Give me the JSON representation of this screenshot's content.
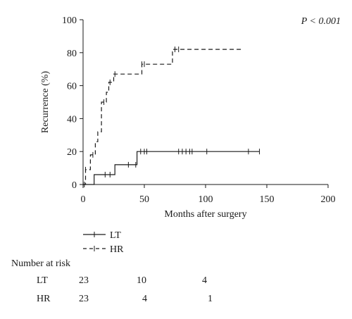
{
  "chart_data": {
    "type": "line",
    "subtype": "kaplan-meier-step",
    "xlabel": "Months after surgery",
    "ylabel": "Recurrence (%)",
    "xlim": [
      0,
      200
    ],
    "ylim": [
      0,
      100
    ],
    "xticks": [
      "0",
      "50",
      "100",
      "150",
      "200"
    ],
    "yticks": [
      "0",
      "20",
      "40",
      "60",
      "80",
      "100"
    ],
    "annotation": "P < 0.001",
    "grid": false,
    "legend_placement": "below-left",
    "series": [
      {
        "name": "LT",
        "style": "solid",
        "color": "#1a1a1a",
        "steps": [
          [
            0,
            0
          ],
          [
            9,
            0
          ],
          [
            9,
            6
          ],
          [
            26,
            6
          ],
          [
            26,
            12
          ],
          [
            44,
            12
          ],
          [
            44,
            20
          ],
          [
            144,
            20
          ]
        ],
        "censored": [
          18,
          22,
          37,
          43,
          47,
          50,
          52,
          78,
          81,
          84,
          87,
          89,
          101,
          135,
          144
        ]
      },
      {
        "name": "HR",
        "style": "dashed",
        "color": "#1a1a1a",
        "steps": [
          [
            0,
            0
          ],
          [
            2,
            0
          ],
          [
            2,
            9
          ],
          [
            6,
            9
          ],
          [
            6,
            18
          ],
          [
            10,
            18
          ],
          [
            10,
            26
          ],
          [
            12,
            26
          ],
          [
            12,
            32
          ],
          [
            15,
            32
          ],
          [
            15,
            50
          ],
          [
            19,
            50
          ],
          [
            19,
            56
          ],
          [
            21,
            56
          ],
          [
            21,
            62
          ],
          [
            25,
            62
          ],
          [
            25,
            67
          ],
          [
            48,
            67
          ],
          [
            48,
            73
          ],
          [
            73,
            73
          ],
          [
            73,
            82
          ],
          [
            130,
            82
          ]
        ],
        "censored": [
          1,
          2,
          8,
          17,
          22,
          26,
          48,
          50,
          75,
          78
        ]
      }
    ]
  },
  "risk_table": {
    "title": "Number at risk",
    "rows": [
      {
        "label": "LT",
        "values": [
          "23",
          "10",
          "4"
        ]
      },
      {
        "label": "HR",
        "values": [
          "23",
          "4",
          "1"
        ]
      }
    ]
  }
}
